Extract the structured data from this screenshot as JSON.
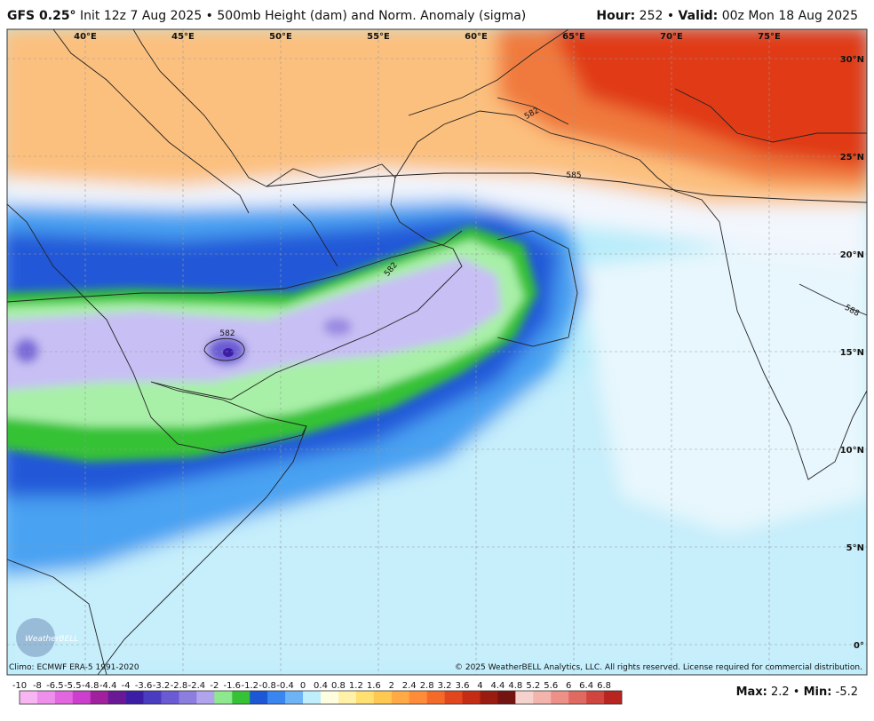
{
  "header": {
    "model": "GFS 0.25°",
    "description": "Init 12z 7 Aug 2025 • 500mb Height (dam) and Norm. Anomaly (sigma)",
    "hour_label": "Hour:",
    "hour_value": "252 •",
    "valid_label": "Valid:",
    "valid_value": "00z Mon 18 Aug 2025"
  },
  "map": {
    "longitude_labels": [
      "40°E",
      "45°E",
      "50°E",
      "55°E",
      "60°E",
      "65°E",
      "70°E",
      "75°E"
    ],
    "latitude_labels": [
      "30°N",
      "25°N",
      "20°N",
      "15°N",
      "10°N",
      "5°N",
      "0°"
    ],
    "contour_labels": [
      "585",
      "582",
      "582",
      "582",
      "588"
    ],
    "logo": "WeatherBELL"
  },
  "footer": {
    "climo": "Climo: ECMWF ERA-5 1991-2020",
    "copyright": "© 2025 WeatherBELL Analytics, LLC. All rights reserved. License required for commercial distribution."
  },
  "legend": {
    "labels": [
      "-10",
      "-8",
      "-6.5",
      "-5.5",
      "-4.8",
      "-4.4",
      "-4",
      "-3.6",
      "-3.2",
      "-2.8",
      "-2.4",
      "-2",
      "-1.6",
      "-1.2",
      "-0.8",
      "-0.4",
      "0",
      "0.4",
      "0.8",
      "1.2",
      "1.6",
      "2",
      "2.4",
      "2.8",
      "3.2",
      "3.6",
      "4",
      "4.4",
      "4.8",
      "5.2",
      "5.6",
      "6",
      "6.4",
      "6.8"
    ],
    "colors": [
      "#f7b6f2",
      "#ee8fec",
      "#e266e0",
      "#cc3fcc",
      "#a0209e",
      "#6a1896",
      "#3c1ea6",
      "#4a3cc0",
      "#6a5ad4",
      "#8c7ede",
      "#b2a4ec",
      "#8ee88e",
      "#36c236",
      "#1c58d6",
      "#3a86f0",
      "#6cb4f6",
      "#bfeefc",
      "#fffde0",
      "#fff2a8",
      "#ffe070",
      "#ffc850",
      "#ffaa44",
      "#ff8c38",
      "#f56a28",
      "#e2461c",
      "#c42c14",
      "#9a1c10",
      "#741410",
      "#f6d2cc",
      "#f2b4ac",
      "#ec9088",
      "#e06a62",
      "#d0463e",
      "#b82420"
    ],
    "max_label": "Max:",
    "max_value": "2.2 •",
    "min_label": "Min:",
    "min_value": "-5.2"
  }
}
